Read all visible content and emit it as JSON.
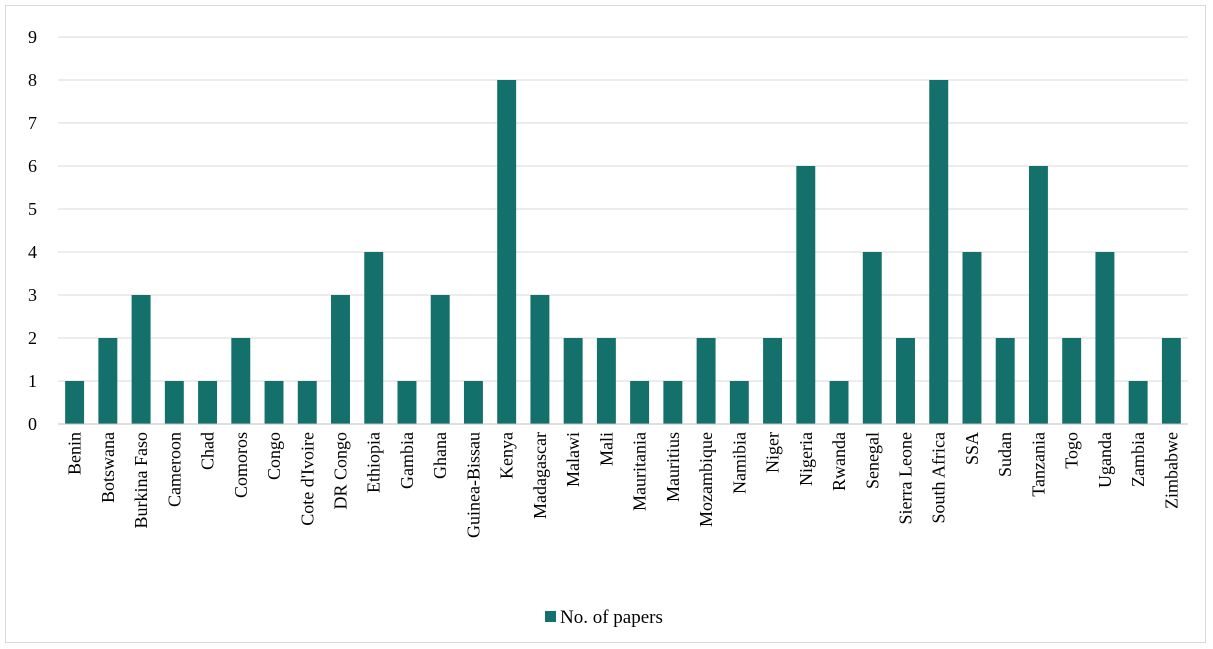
{
  "chart_data": {
    "type": "bar",
    "categories": [
      "Benin",
      "Botswana",
      "Burkina Faso",
      "Cameroon",
      "Chad",
      "Comoros",
      "Congo",
      "Cote d'Ivoire",
      "DR Congo",
      "Ethiopia",
      "Gambia",
      "Ghana",
      "Guinea-Bissau",
      "Kenya",
      "Madagascar",
      "Malawi",
      "Mali",
      "Mauritania",
      "Mauritius",
      "Mozambique",
      "Namibia",
      "Niger",
      "Nigeria",
      "Rwanda",
      "Senegal",
      "Sierra Leone",
      "South Africa",
      "SSA",
      "Sudan",
      "Tanzania",
      "Togo",
      "Uganda",
      "Zambia",
      "Zimbabwe"
    ],
    "series": [
      {
        "name": "No. of papers",
        "color": "#13706a",
        "values": [
          1,
          2,
          3,
          1,
          1,
          2,
          1,
          1,
          3,
          4,
          1,
          3,
          1,
          8,
          3,
          2,
          2,
          1,
          1,
          2,
          1,
          2,
          6,
          1,
          4,
          2,
          8,
          4,
          2,
          6,
          2,
          4,
          1,
          2
        ]
      }
    ],
    "ylim": [
      0,
      9
    ],
    "yticks": [
      "0",
      "1",
      "2",
      "3",
      "4",
      "5",
      "6",
      "7",
      "8",
      "9"
    ],
    "grid": true,
    "legend_position": "bottom",
    "gridline_color": "#d9d9d9",
    "axis_color": "#bfbfbf"
  }
}
